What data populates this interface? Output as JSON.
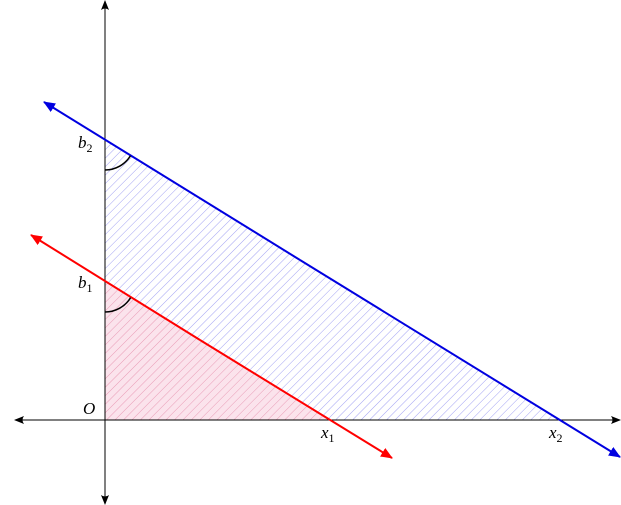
{
  "labels": [
    {
      "base": "b",
      "sub": "2"
    },
    {
      "base": "b",
      "sub": "1"
    },
    {
      "base": "O"
    },
    {
      "base": "x",
      "sub": "1"
    },
    {
      "base": "x",
      "sub": "2"
    }
  ]
}
